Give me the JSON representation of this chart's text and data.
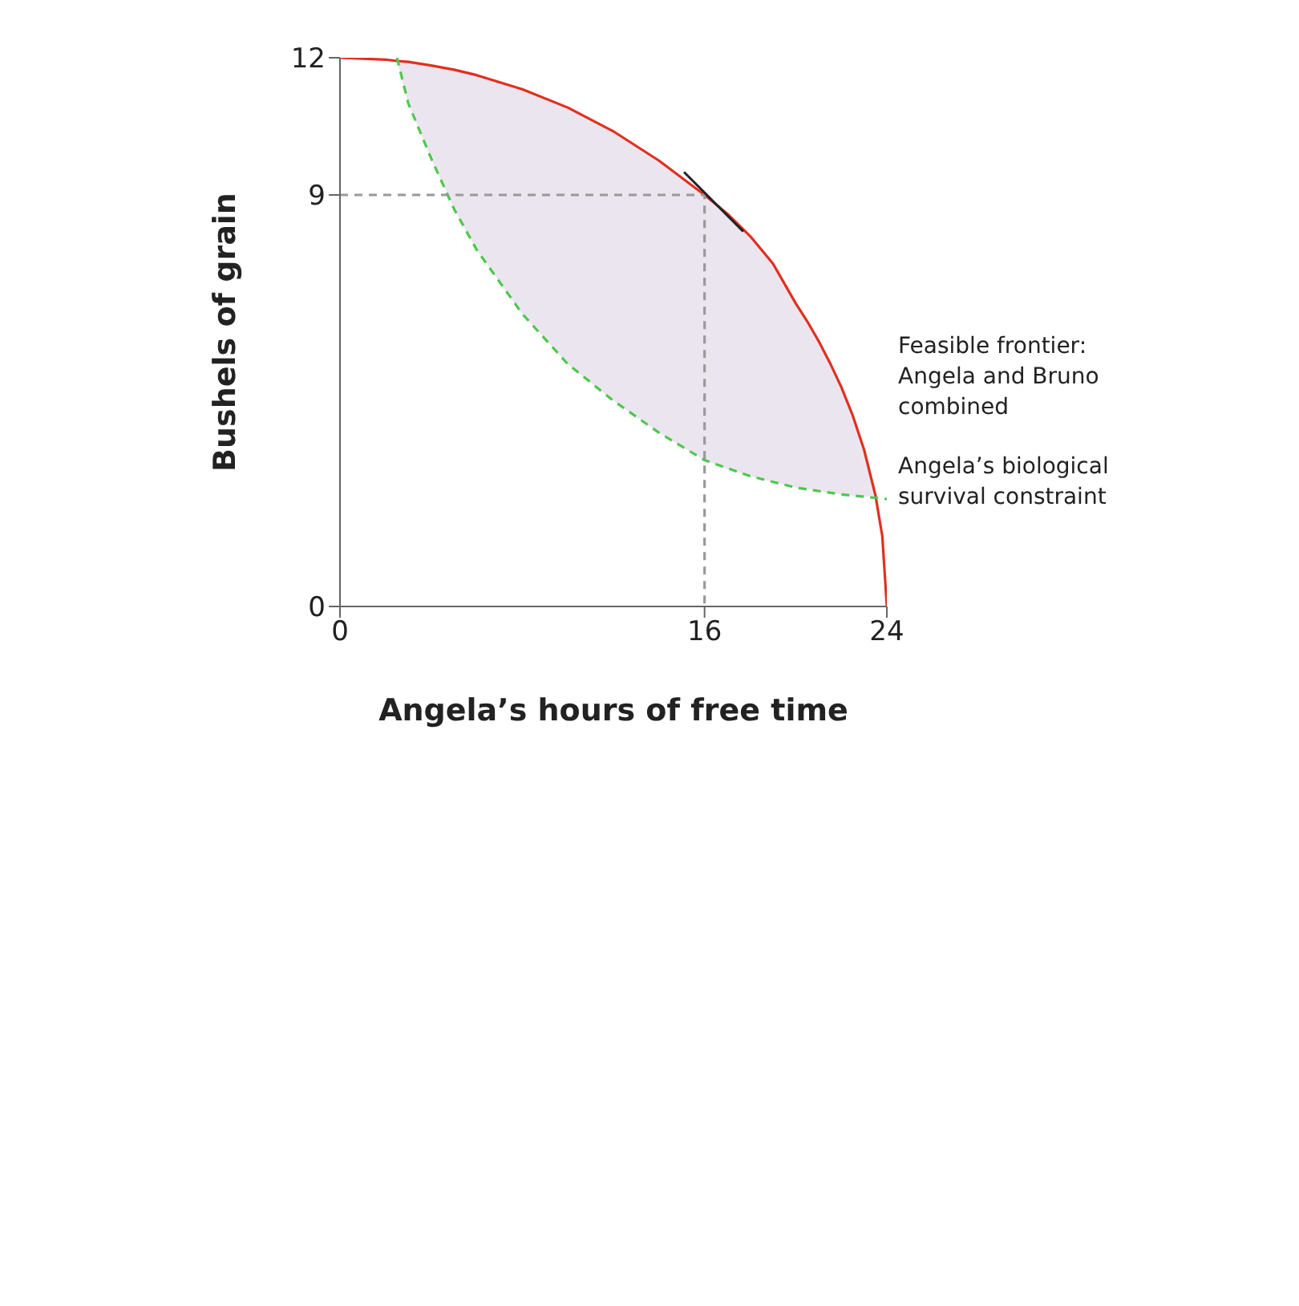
{
  "chart_data": {
    "type": "line",
    "xlabel": "Angela’s hours of free time",
    "ylabel": "Bushels of grain",
    "xlim": [
      0,
      24
    ],
    "ylim": [
      0,
      12
    ],
    "xticks": [
      0,
      16,
      24
    ],
    "yticks": [
      0,
      9,
      12
    ],
    "grid": false,
    "legend": false,
    "marker": "none",
    "series": [
      {
        "name": "Feasible frontier: Angela and Bruno combined",
        "color": "#e0301e",
        "x": [
          0,
          2,
          2.5,
          3,
          4,
          5,
          6,
          8,
          10,
          12,
          14,
          16,
          17,
          18,
          19,
          20,
          20.5,
          21,
          21.5,
          22,
          22.5,
          23,
          23.5,
          23.8,
          24
        ],
        "values": [
          12,
          11.96,
          11.93,
          11.91,
          11.83,
          11.74,
          11.62,
          11.31,
          10.91,
          10.39,
          9.75,
          9,
          8.59,
          8.1,
          7.5,
          6.63,
          6.24,
          5.81,
          5.33,
          4.8,
          4.18,
          3.43,
          2.43,
          1.54,
          0
        ],
        "lower": [
          null,
          null,
          11.93,
          11,
          9.8,
          8.7,
          7.8,
          6.4,
          5.3,
          4.5,
          3.8,
          3.2,
          3,
          2.85,
          2.72,
          2.6,
          2.57,
          2.53,
          2.49,
          2.45,
          2.42,
          2.4,
          2.43,
          null,
          null
        ],
        "upper": [
          null,
          null,
          11.93,
          11.91,
          11.83,
          11.74,
          11.62,
          11.31,
          10.91,
          10.39,
          9.75,
          9,
          8.59,
          8.1,
          7.5,
          6.63,
          6.24,
          5.81,
          5.33,
          4.8,
          4.18,
          3.43,
          2.43,
          null,
          null
        ]
      },
      {
        "name": "Angela’s biological survival constraint",
        "color": "#4cc94c",
        "line_style": "dashed",
        "x": [
          2.5,
          3,
          4,
          5,
          6,
          8,
          10,
          12,
          14,
          16,
          18,
          20,
          22,
          24
        ],
        "values": [
          12,
          11,
          9.8,
          8.7,
          7.8,
          6.4,
          5.3,
          4.5,
          3.8,
          3.2,
          2.85,
          2.6,
          2.45,
          2.35
        ]
      },
      {
        "color": "#999999",
        "line_style": "dashed",
        "x": [
          0,
          16,
          16
        ],
        "values": [
          9,
          9,
          0
        ]
      },
      {
        "color": "#222222",
        "x": [
          15.1,
          17.7
        ],
        "values": [
          9.5,
          8.2
        ]
      }
    ]
  }
}
